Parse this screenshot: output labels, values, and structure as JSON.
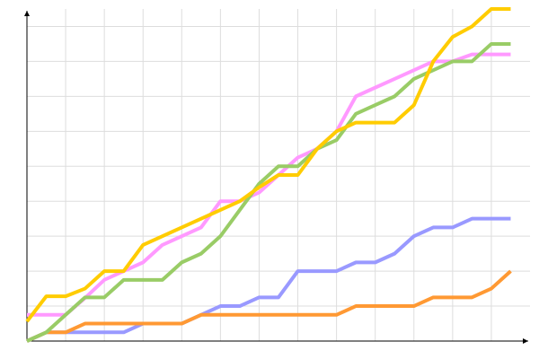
{
  "chart_data": {
    "type": "line",
    "x": [
      0,
      1,
      2,
      3,
      4,
      5,
      6,
      7,
      8,
      9,
      10,
      11,
      12,
      13,
      14,
      15,
      16,
      17,
      18,
      19,
      20,
      21,
      22,
      23,
      24,
      25
    ],
    "series": [
      {
        "color": "#9999ff",
        "values": [
          0,
          2.5,
          2.5,
          2.5,
          2.5,
          2.5,
          5,
          5,
          5,
          7.5,
          10,
          10,
          12.5,
          12.5,
          20,
          20,
          20,
          22.5,
          22.5,
          25,
          30,
          32.5,
          32.5,
          35,
          35,
          35
        ]
      },
      {
        "color": "#ff9933",
        "values": [
          0,
          2.5,
          2.5,
          5,
          5,
          5,
          5,
          5,
          5,
          7.5,
          7.5,
          7.5,
          7.5,
          7.5,
          7.5,
          7.5,
          7.5,
          10,
          10,
          10,
          10,
          12.5,
          12.5,
          12.5,
          15,
          20
        ]
      },
      {
        "color": "#ff99ff",
        "values": [
          7.5,
          7.5,
          7.5,
          12.3,
          17.5,
          20,
          22.5,
          27.5,
          30,
          32.5,
          40,
          40,
          42.5,
          47.5,
          52.5,
          55,
          60,
          70,
          72.5,
          75,
          77.5,
          80,
          80,
          82,
          82,
          82
        ]
      },
      {
        "color": "#99cc66",
        "values": [
          0,
          2.5,
          7.5,
          12.5,
          12.5,
          17.5,
          17.5,
          17.5,
          22.5,
          25,
          30,
          37.5,
          45,
          50,
          50,
          55,
          57.5,
          65,
          67.5,
          70,
          75,
          77.5,
          80,
          80,
          85,
          85
        ]
      },
      {
        "color": "#ffcc00",
        "values": [
          5.6,
          12.8,
          12.8,
          15,
          20,
          20,
          27.5,
          30,
          32.5,
          35,
          37.5,
          40,
          44,
          47.5,
          47.5,
          55,
          60,
          62.5,
          62.5,
          62.5,
          67.5,
          80,
          87,
          90,
          95,
          95
        ]
      }
    ],
    "xlim": [
      0,
      26
    ],
    "ylim": [
      0,
      95
    ],
    "xticks": [
      2,
      4,
      6,
      8,
      10,
      12,
      14,
      16,
      18,
      20,
      22,
      24
    ],
    "yticks": [
      10,
      20,
      30,
      40,
      50,
      60,
      70,
      80,
      90
    ],
    "grid": true
  }
}
